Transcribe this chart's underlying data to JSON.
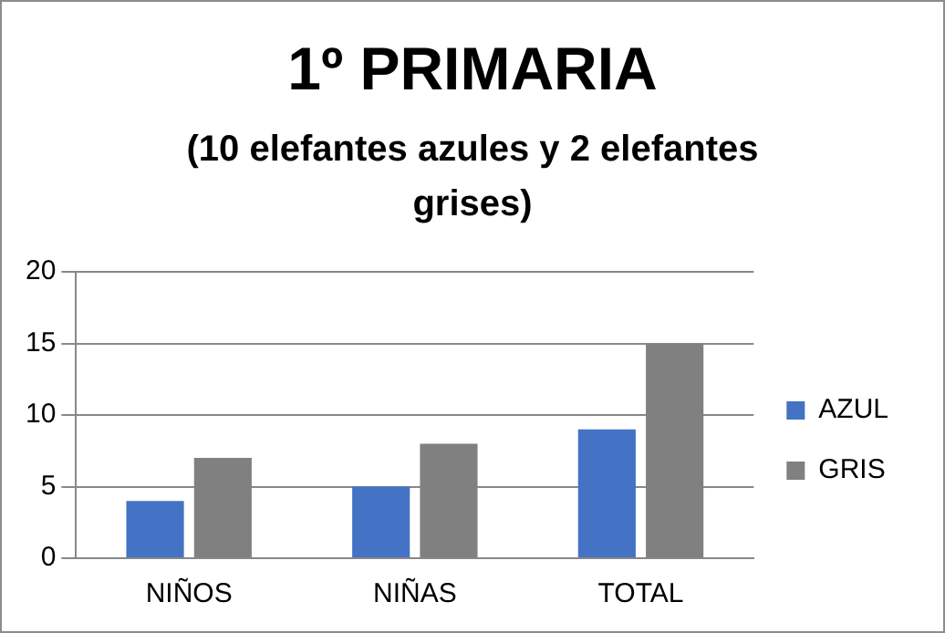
{
  "chart_data": {
    "type": "bar",
    "title": "1º PRIMARIA",
    "subtitle": "(10 elefantes azules y 2 elefantes grises)",
    "categories": [
      "NIÑOS",
      "NIÑAS",
      "TOTAL"
    ],
    "series": [
      {
        "name": "AZUL",
        "color": "#4472c4",
        "values": [
          4,
          5,
          9
        ]
      },
      {
        "name": "GRIS",
        "color": "#808080",
        "values": [
          7,
          8,
          15
        ]
      }
    ],
    "ylim": [
      0,
      20
    ],
    "yticks": [
      0,
      5,
      10,
      15,
      20
    ],
    "grid": "y",
    "legend": "right"
  }
}
